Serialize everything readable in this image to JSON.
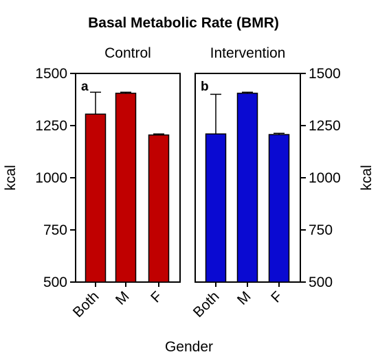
{
  "chart_data": {
    "type": "bar",
    "title": "Basal Metabolic Rate (BMR)",
    "xlabel": "Gender",
    "ylabel": "kcal",
    "ylim": [
      500,
      1500
    ],
    "yticks": [
      500,
      750,
      1000,
      1250,
      1500
    ],
    "yticks_labels": [
      "500",
      "750",
      "1000",
      "1250",
      "1500"
    ],
    "grid": false,
    "panels": [
      {
        "letter": "a",
        "title": "Control",
        "color": "#c00000",
        "y_axis_side": "left",
        "categories": [
          "Both",
          "M",
          "F"
        ],
        "values": [
          1305,
          1405,
          1205
        ],
        "errors": [
          105,
          5,
          5
        ]
      },
      {
        "letter": "b",
        "title": "Intervention",
        "color": "#0a0ad2",
        "y_axis_side": "right",
        "categories": [
          "Both",
          "M",
          "F"
        ],
        "values": [
          1210,
          1405,
          1207
        ],
        "errors": [
          190,
          5,
          6
        ]
      }
    ]
  }
}
